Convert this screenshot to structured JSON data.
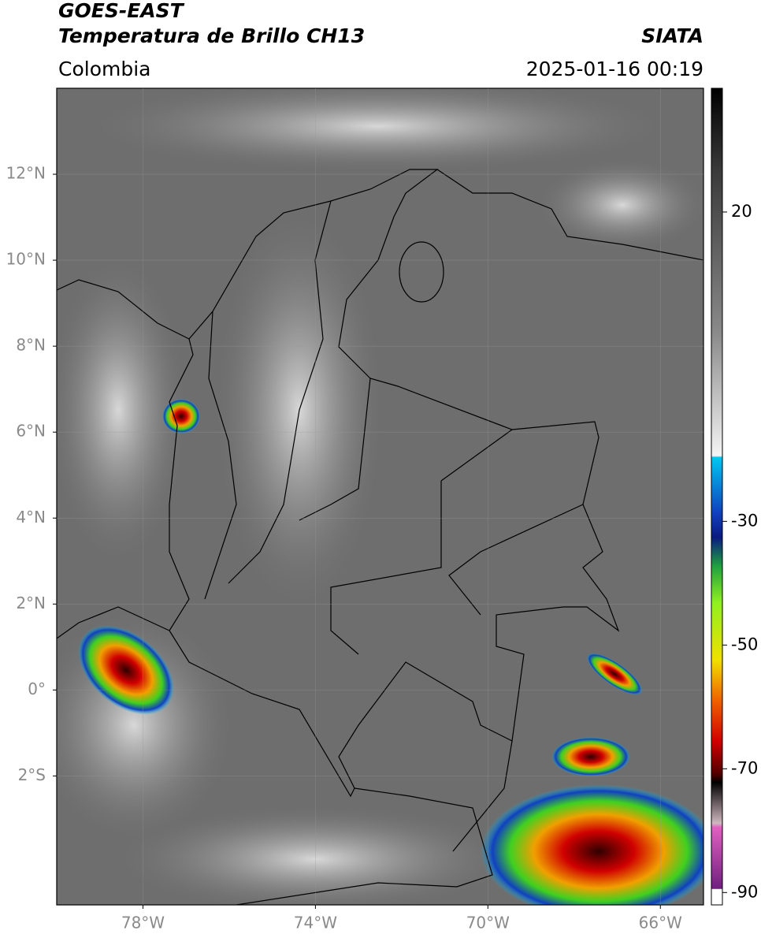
{
  "header": {
    "title": "GOES-EAST",
    "subtitle": "Temperatura de Brillo CH13",
    "source": "SIATA",
    "region": "Colombia",
    "timestamp": "2025-01-16 00:19"
  },
  "map": {
    "xlim": [
      -80,
      -65
    ],
    "ylim": [
      -5,
      14
    ],
    "xticks": [
      {
        "value": -78,
        "label": "78°W"
      },
      {
        "value": -74,
        "label": "74°W"
      },
      {
        "value": -70,
        "label": "70°W"
      },
      {
        "value": -66,
        "label": "66°W"
      }
    ],
    "yticks": [
      {
        "value": 12,
        "label": "12°N"
      },
      {
        "value": 10,
        "label": "10°N"
      },
      {
        "value": 8,
        "label": "8°N"
      },
      {
        "value": 6,
        "label": "6°N"
      },
      {
        "value": 4,
        "label": "4°N"
      },
      {
        "value": 2,
        "label": "2°N"
      },
      {
        "value": 0,
        "label": "0°"
      },
      {
        "value": -2,
        "label": "2°S"
      }
    ],
    "grid": true
  },
  "colorbar": {
    "lim": [
      -92,
      40
    ],
    "ticks": [
      20,
      -30,
      -50,
      -70,
      -90
    ]
  }
}
